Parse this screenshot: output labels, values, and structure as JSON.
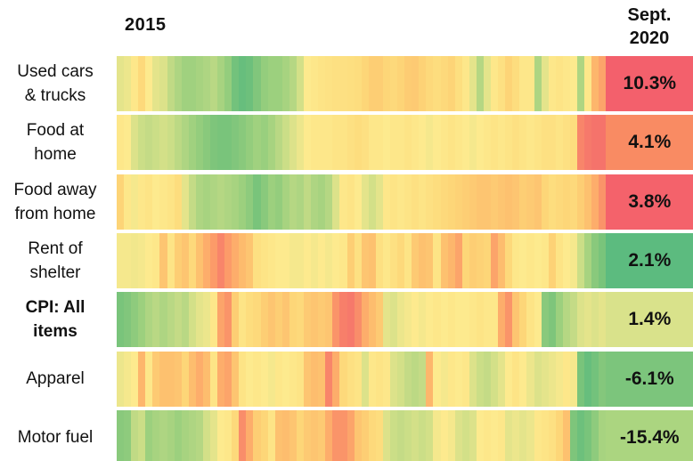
{
  "chart_data": {
    "type": "heatmap",
    "description": "Monthly year-over-year percent change by CPI category, colored on a per-row scale (green = lowest for that row, red = highest for that row). Final wide cell shows Sept. 2020 value.",
    "x_axis": {
      "start_label": "2015",
      "end_label": "Sept.\n2020",
      "months_shown": 68
    },
    "value_encoding": "color position 0 = greenest (lowest YoY change in row), 1 = reddest (highest YoY change in row)",
    "color_scale_anchors": [
      [
        0.0,
        "#56b87f"
      ],
      [
        0.125,
        "#7ac47b"
      ],
      [
        0.25,
        "#9cd07e"
      ],
      [
        0.375,
        "#c9dd87"
      ],
      [
        0.5,
        "#fdea8e"
      ],
      [
        0.5625,
        "#fde081"
      ],
      [
        0.625,
        "#fdd577"
      ],
      [
        0.75,
        "#fdbb6d"
      ],
      [
        0.8125,
        "#fc9e69"
      ],
      [
        0.875,
        "#f8876a"
      ],
      [
        1.0,
        "#f3606c"
      ]
    ],
    "rows": [
      {
        "name": "Used cars & trucks",
        "label": "Used cars\n& trucks",
        "bold": false,
        "sept_2020_label": "10.3%",
        "sept_2020_value": 10.3,
        "sept_cell_color": "#f3606c",
        "monthly_color_values": [
          0.44,
          0.46,
          0.52,
          0.6,
          0.5,
          0.44,
          0.42,
          0.35,
          0.3,
          0.26,
          0.26,
          0.28,
          0.3,
          0.33,
          0.28,
          0.22,
          0.1,
          0.06,
          0.08,
          0.15,
          0.22,
          0.25,
          0.25,
          0.28,
          0.32,
          0.4,
          0.5,
          0.52,
          0.54,
          0.55,
          0.56,
          0.56,
          0.57,
          0.58,
          0.62,
          0.66,
          0.66,
          0.62,
          0.6,
          0.63,
          0.67,
          0.68,
          0.64,
          0.6,
          0.58,
          0.6,
          0.63,
          0.57,
          0.52,
          0.44,
          0.32,
          0.44,
          0.52,
          0.56,
          0.63,
          0.58,
          0.52,
          0.52,
          0.3,
          0.44,
          0.52,
          0.54,
          0.52,
          0.5,
          0.3,
          0.52,
          0.76,
          0.8
        ]
      },
      {
        "name": "Food at home",
        "label": "Food at\nhome",
        "bold": false,
        "sept_2020_label": "4.1%",
        "sept_2020_value": 4.1,
        "sept_cell_color": "#f98b63",
        "monthly_color_values": [
          0.52,
          0.5,
          0.42,
          0.38,
          0.36,
          0.38,
          0.4,
          0.38,
          0.34,
          0.3,
          0.26,
          0.22,
          0.18,
          0.14,
          0.12,
          0.12,
          0.15,
          0.18,
          0.22,
          0.26,
          0.24,
          0.28,
          0.33,
          0.38,
          0.42,
          0.46,
          0.5,
          0.52,
          0.52,
          0.52,
          0.54,
          0.54,
          0.56,
          0.58,
          0.56,
          0.52,
          0.52,
          0.5,
          0.52,
          0.52,
          0.54,
          0.52,
          0.5,
          0.48,
          0.5,
          0.52,
          0.54,
          0.52,
          0.5,
          0.48,
          0.5,
          0.52,
          0.54,
          0.52,
          0.54,
          0.56,
          0.54,
          0.52,
          0.54,
          0.56,
          0.56,
          0.54,
          0.56,
          0.58,
          0.88,
          0.92,
          0.94,
          0.94
        ]
      },
      {
        "name": "Food away from home",
        "label": "Food away\nfrom home",
        "bold": false,
        "sept_2020_label": "3.8%",
        "sept_2020_value": 3.8,
        "sept_cell_color": "#f4626b",
        "monthly_color_values": [
          0.63,
          0.52,
          0.48,
          0.52,
          0.54,
          0.5,
          0.52,
          0.54,
          0.58,
          0.44,
          0.36,
          0.3,
          0.28,
          0.3,
          0.32,
          0.3,
          0.28,
          0.25,
          0.2,
          0.12,
          0.18,
          0.25,
          0.22,
          0.28,
          0.32,
          0.3,
          0.35,
          0.3,
          0.28,
          0.32,
          0.42,
          0.52,
          0.54,
          0.5,
          0.44,
          0.4,
          0.44,
          0.52,
          0.54,
          0.52,
          0.54,
          0.56,
          0.54,
          0.56,
          0.58,
          0.6,
          0.62,
          0.64,
          0.66,
          0.68,
          0.7,
          0.7,
          0.68,
          0.7,
          0.72,
          0.7,
          0.66,
          0.68,
          0.7,
          0.62,
          0.58,
          0.6,
          0.62,
          0.6,
          0.66,
          0.72,
          0.78,
          0.84
        ]
      },
      {
        "name": "Rent of shelter",
        "label": "Rent of\nshelter",
        "bold": false,
        "sept_2020_label": "2.1%",
        "sept_2020_value": 2.1,
        "sept_cell_color": "#5cbb7f",
        "monthly_color_values": [
          0.48,
          0.48,
          0.47,
          0.48,
          0.5,
          0.52,
          0.7,
          0.54,
          0.66,
          0.7,
          0.6,
          0.72,
          0.78,
          0.82,
          0.88,
          0.82,
          0.78,
          0.75,
          0.7,
          0.56,
          0.54,
          0.52,
          0.5,
          0.5,
          0.48,
          0.48,
          0.5,
          0.48,
          0.5,
          0.48,
          0.5,
          0.52,
          0.66,
          0.56,
          0.7,
          0.72,
          0.56,
          0.52,
          0.56,
          0.6,
          0.54,
          0.68,
          0.72,
          0.7,
          0.54,
          0.72,
          0.76,
          0.8,
          0.62,
          0.66,
          0.64,
          0.62,
          0.8,
          0.74,
          0.6,
          0.52,
          0.5,
          0.52,
          0.5,
          0.52,
          0.64,
          0.54,
          0.5,
          0.48,
          0.38,
          0.28,
          0.18,
          0.12
        ]
      },
      {
        "name": "CPI: All items",
        "label": "CPI: All\nitems",
        "bold": true,
        "sept_2020_label": "1.4%",
        "sept_2020_value": 1.4,
        "sept_cell_color": "#d9e28b",
        "monthly_color_values": [
          0.12,
          0.15,
          0.2,
          0.25,
          0.3,
          0.33,
          0.3,
          0.33,
          0.36,
          0.33,
          0.4,
          0.44,
          0.46,
          0.52,
          0.8,
          0.84,
          0.66,
          0.54,
          0.58,
          0.6,
          0.66,
          0.7,
          0.66,
          0.7,
          0.62,
          0.6,
          0.68,
          0.7,
          0.68,
          0.7,
          0.84,
          0.9,
          0.92,
          0.86,
          0.78,
          0.74,
          0.68,
          0.44,
          0.42,
          0.46,
          0.48,
          0.5,
          0.48,
          0.5,
          0.52,
          0.5,
          0.52,
          0.5,
          0.5,
          0.52,
          0.54,
          0.52,
          0.52,
          0.78,
          0.84,
          0.7,
          0.62,
          0.54,
          0.5,
          0.18,
          0.14,
          0.25,
          0.32,
          0.36,
          0.42,
          0.44,
          0.42,
          0.44
        ]
      },
      {
        "name": "Apparel",
        "label": "Apparel",
        "bold": false,
        "sept_2020_label": "-6.1%",
        "sept_2020_value": -6.1,
        "sept_cell_color": "#7cc57c",
        "monthly_color_values": [
          0.46,
          0.48,
          0.5,
          0.76,
          0.52,
          0.68,
          0.72,
          0.72,
          0.7,
          0.62,
          0.74,
          0.78,
          0.74,
          0.54,
          0.78,
          0.8,
          0.7,
          0.54,
          0.5,
          0.52,
          0.5,
          0.48,
          0.52,
          0.5,
          0.52,
          0.54,
          0.7,
          0.74,
          0.72,
          0.88,
          0.78,
          0.6,
          0.56,
          0.54,
          0.42,
          0.52,
          0.54,
          0.52,
          0.42,
          0.4,
          0.36,
          0.34,
          0.36,
          0.76,
          0.5,
          0.48,
          0.52,
          0.5,
          0.52,
          0.42,
          0.38,
          0.36,
          0.4,
          0.44,
          0.5,
          0.54,
          0.5,
          0.46,
          0.42,
          0.44,
          0.46,
          0.48,
          0.52,
          0.48,
          0.12,
          0.06,
          0.1,
          0.16
        ]
      },
      {
        "name": "Motor fuel",
        "label": "Motor fuel",
        "bold": false,
        "sept_2020_label": "-15.4%",
        "sept_2020_value": -15.4,
        "sept_cell_color": "#abd580",
        "monthly_color_values": [
          0.18,
          0.2,
          0.35,
          0.38,
          0.25,
          0.28,
          0.3,
          0.28,
          0.25,
          0.28,
          0.3,
          0.32,
          0.4,
          0.44,
          0.5,
          0.52,
          0.6,
          0.86,
          0.78,
          0.66,
          0.62,
          0.54,
          0.72,
          0.74,
          0.7,
          0.62,
          0.68,
          0.7,
          0.68,
          0.78,
          0.84,
          0.84,
          0.8,
          0.7,
          0.66,
          0.6,
          0.58,
          0.42,
          0.38,
          0.36,
          0.38,
          0.4,
          0.38,
          0.4,
          0.48,
          0.5,
          0.48,
          0.42,
          0.4,
          0.42,
          0.5,
          0.52,
          0.5,
          0.52,
          0.44,
          0.46,
          0.44,
          0.46,
          0.52,
          0.54,
          0.56,
          0.62,
          0.72,
          0.14,
          0.08,
          0.12,
          0.2,
          0.28
        ]
      }
    ]
  }
}
